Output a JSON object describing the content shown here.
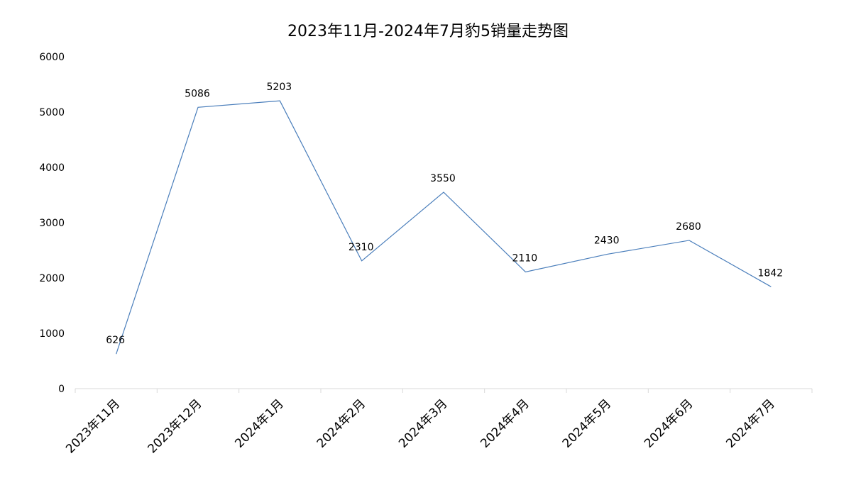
{
  "chart_data": {
    "type": "line",
    "title": "2023年11月-2024年7月豹5销量走势图",
    "xlabel": "",
    "ylabel": "",
    "categories": [
      "2023年11月",
      "2023年12月",
      "2024年1月",
      "2024年2月",
      "2024年3月",
      "2024年4月",
      "2024年5月",
      "2024年6月",
      "2024年7月"
    ],
    "series": [
      {
        "values": [
          626,
          5086,
          5203,
          2310,
          3550,
          2110,
          2430,
          2680,
          1842
        ]
      }
    ],
    "ylim": [
      0,
      6000
    ],
    "yticks": [
      "0",
      "1000",
      "2000",
      "3000",
      "4000",
      "5000",
      "6000"
    ],
    "data_labels": [
      "626",
      "5086",
      "5203",
      "2310",
      "3550",
      "2110",
      "2430",
      "2680",
      "1842"
    ],
    "grid": false,
    "legend": "none",
    "line_color": "#4a7ebb",
    "axis_color": "#d9d9d9"
  }
}
